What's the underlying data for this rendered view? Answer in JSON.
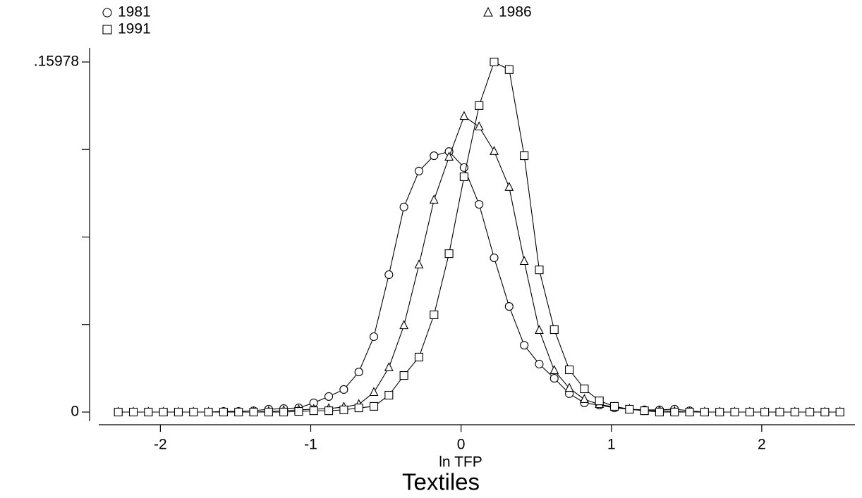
{
  "chart_data": {
    "type": "line",
    "title": "Textiles",
    "xlabel": "ln TFP",
    "x": [
      -2.28,
      -2.18,
      -2.08,
      -1.98,
      -1.88,
      -1.78,
      -1.68,
      -1.58,
      -1.48,
      -1.38,
      -1.28,
      -1.18,
      -1.08,
      -0.98,
      -0.88,
      -0.78,
      -0.68,
      -0.58,
      -0.48,
      -0.38,
      -0.28,
      -0.18,
      -0.08,
      0.02,
      0.12,
      0.22,
      0.32,
      0.42,
      0.52,
      0.62,
      0.72,
      0.82,
      0.92,
      1.02,
      1.12,
      1.22,
      1.32,
      1.42,
      1.52,
      1.62,
      1.72,
      1.82,
      1.92,
      2.02,
      2.12,
      2.22,
      2.32,
      2.42,
      2.52
    ],
    "series": [
      {
        "name": "1981",
        "color": "#000000",
        "marker": "circle",
        "values": [
          0,
          0,
          0,
          0,
          0,
          0,
          0,
          0.0003,
          0.0003,
          0.0006,
          0.0013,
          0.0016,
          0.0019,
          0.0042,
          0.0071,
          0.0103,
          0.0183,
          0.0344,
          0.0627,
          0.0936,
          0.11,
          0.117,
          0.1189,
          0.1116,
          0.0948,
          0.0704,
          0.0482,
          0.0305,
          0.0219,
          0.0154,
          0.0084,
          0.0042,
          0.0032,
          0.0019,
          0.0013,
          0.001,
          0.001,
          0.0013,
          0.0006,
          0,
          0,
          0,
          0,
          0,
          0,
          0,
          0,
          0,
          0
        ]
      },
      {
        "name": "1986",
        "color": "#000000",
        "marker": "triangle",
        "values": [
          0,
          0,
          0,
          0,
          0,
          0,
          0,
          0,
          0,
          0,
          0.0003,
          0.0006,
          0.001,
          0.0013,
          0.0016,
          0.0023,
          0.0035,
          0.009,
          0.0203,
          0.0395,
          0.0672,
          0.0968,
          0.1164,
          0.135,
          0.1302,
          0.119,
          0.1026,
          0.0688,
          0.0373,
          0.019,
          0.0109,
          0.0058,
          0.0035,
          0.0023,
          0.0013,
          0.0006,
          0.0006,
          0.0003,
          0,
          0,
          0,
          0,
          0,
          0,
          0,
          0,
          0,
          0,
          0
        ]
      },
      {
        "name": "1991",
        "color": "#000000",
        "marker": "square",
        "values": [
          0,
          0,
          0,
          0,
          0,
          0,
          0,
          0,
          0,
          0,
          0,
          0,
          0.0003,
          0.0006,
          0.0006,
          0.001,
          0.0019,
          0.0026,
          0.0077,
          0.0167,
          0.0251,
          0.0444,
          0.0723,
          0.1074,
          0.1399,
          0.15978,
          0.1563,
          0.117,
          0.0649,
          0.0376,
          0.0193,
          0.0106,
          0.0051,
          0.0026,
          0.0013,
          0.0006,
          0,
          0,
          0,
          0,
          0,
          0,
          0,
          0,
          0,
          0,
          0,
          0,
          0
        ]
      }
    ],
    "xlim": [
      -2.41,
      2.62
    ],
    "xticks": [
      -2,
      -1,
      0,
      1,
      2
    ],
    "ylim": [
      0,
      0.15978
    ],
    "yticks": [
      0,
      {
        "value": 0.15978,
        "label": ".15978"
      }
    ],
    "yticks_unlabeled": [
      0.039945,
      0.07989,
      0.119835
    ],
    "legend": "top"
  }
}
